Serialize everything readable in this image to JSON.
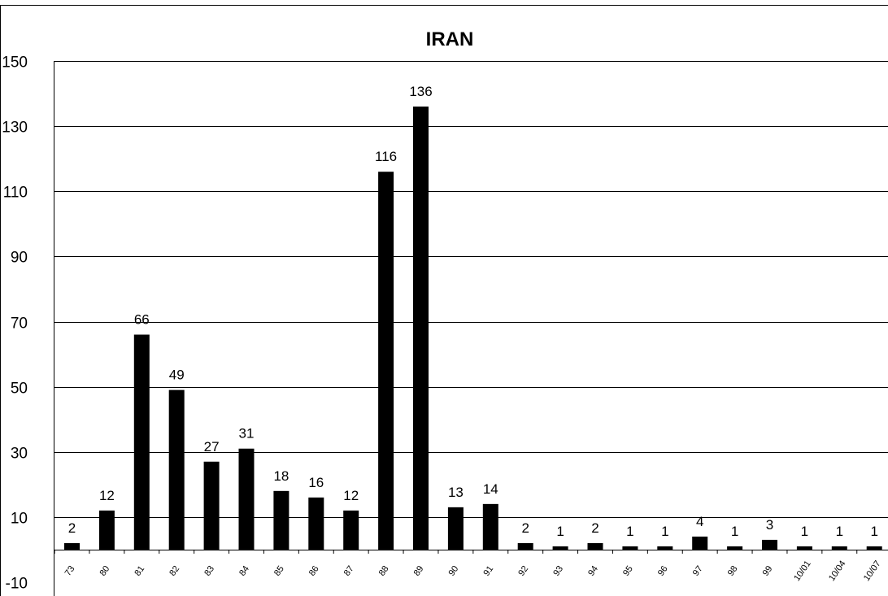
{
  "chart_data": {
    "type": "bar",
    "title": "IRAN",
    "xlabel": "",
    "ylabel": "",
    "ylim": [
      -10,
      150
    ],
    "yticks": [
      150,
      130,
      110,
      90,
      70,
      50,
      30,
      10,
      -10
    ],
    "grid": true,
    "legend": "none",
    "bar_color": "#000000",
    "categories": [
      "73",
      "80",
      "81",
      "82",
      "83",
      "84",
      "85",
      "86",
      "87",
      "88",
      "89",
      "90",
      "91",
      "92",
      "93",
      "94",
      "95",
      "96",
      "97",
      "98",
      "99",
      "10/01",
      "10/04",
      "10/07"
    ],
    "values": [
      2,
      12,
      66,
      49,
      27,
      31,
      18,
      16,
      12,
      116,
      136,
      13,
      14,
      2,
      1,
      2,
      1,
      1,
      4,
      1,
      3,
      1,
      1,
      1
    ]
  }
}
